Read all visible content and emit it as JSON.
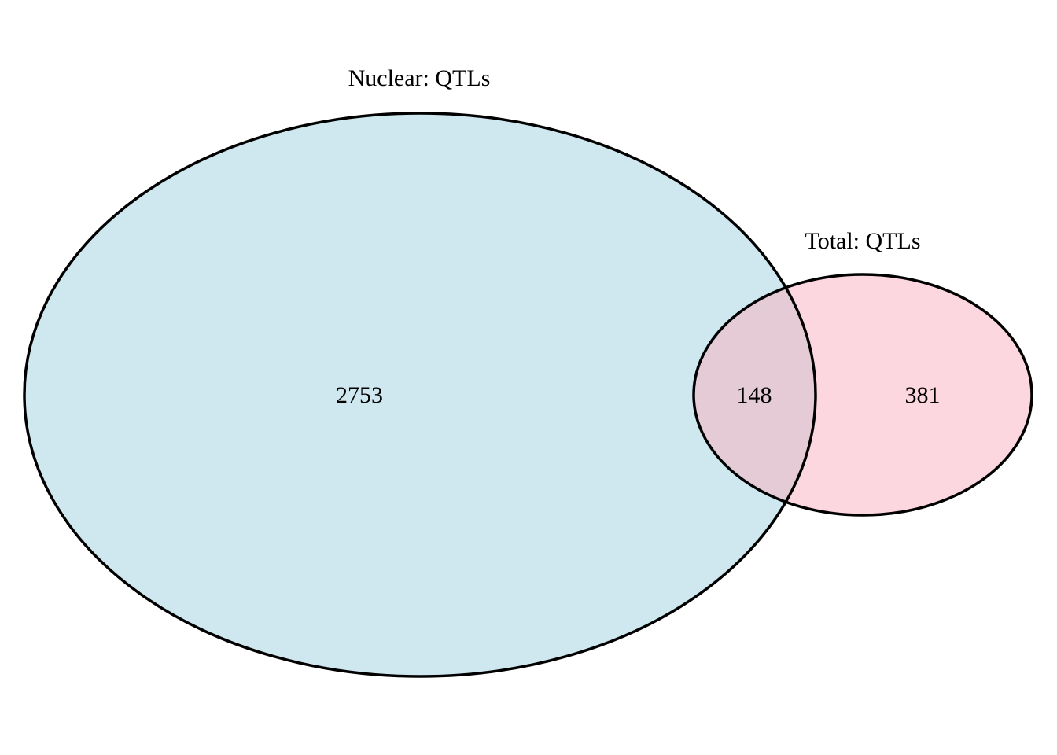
{
  "diagram": {
    "type": "venn",
    "sets": [
      {
        "id": "nuclear",
        "label": "Nuclear: QTLs",
        "exclusive_count": "2753",
        "fill_color": "#cfe7ef",
        "stroke_color": "#000000"
      },
      {
        "id": "total",
        "label": "Total: QTLs",
        "exclusive_count": "381",
        "fill_color": "#fcd7df",
        "stroke_color": "#000000"
      }
    ],
    "intersection": {
      "count": "148",
      "fill_color": "#e4cbd6"
    }
  }
}
